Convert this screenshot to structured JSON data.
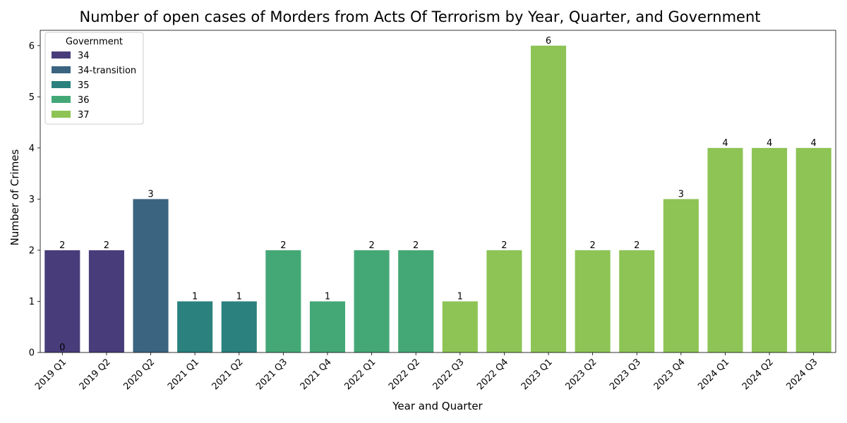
{
  "chart_data": {
    "type": "bar",
    "title": "Number of open cases of Morders from Acts Of Terrorism by Year, Quarter, and Government",
    "xlabel": "Year and Quarter",
    "ylabel": "Number of Crimes",
    "ylim": [
      0,
      6.3
    ],
    "yticks": [
      "0",
      "1",
      "2",
      "3",
      "4",
      "5",
      "6"
    ],
    "grid": false,
    "legend": {
      "title": "Government",
      "placement": "top-left",
      "entries": [
        {
          "name": "34",
          "color": "#483d7a"
        },
        {
          "name": "34-transition",
          "color": "#3b6481"
        },
        {
          "name": "35",
          "color": "#2a817d"
        },
        {
          "name": "36",
          "color": "#44a876"
        },
        {
          "name": "37",
          "color": "#8dc455"
        }
      ]
    },
    "categories": [
      "2019 Q1",
      "2019 Q2",
      "2020 Q2",
      "2021 Q1",
      "2021 Q2",
      "2021 Q3",
      "2021 Q4",
      "2022 Q1",
      "2022 Q2",
      "2022 Q3",
      "2022 Q4",
      "2023 Q1",
      "2023 Q2",
      "2023 Q3",
      "2023 Q4",
      "2024 Q1",
      "2024 Q2",
      "2024 Q3"
    ],
    "values": [
      2,
      2,
      3,
      1,
      1,
      2,
      1,
      2,
      2,
      1,
      2,
      6,
      2,
      2,
      3,
      4,
      4,
      4
    ],
    "labels": [
      "2",
      "2",
      "3",
      "1",
      "1",
      "2",
      "1",
      "2",
      "2",
      "1",
      "2",
      "6",
      "2",
      "2",
      "3",
      "4",
      "4",
      "4"
    ],
    "government": [
      "34",
      "34",
      "34-transition",
      "35",
      "35",
      "36",
      "36",
      "36",
      "36",
      "37",
      "37",
      "37",
      "37",
      "37",
      "37",
      "37",
      "37",
      "37"
    ],
    "annotations": [
      {
        "category": "2019 Q1",
        "text": "0",
        "y": 0
      }
    ]
  }
}
